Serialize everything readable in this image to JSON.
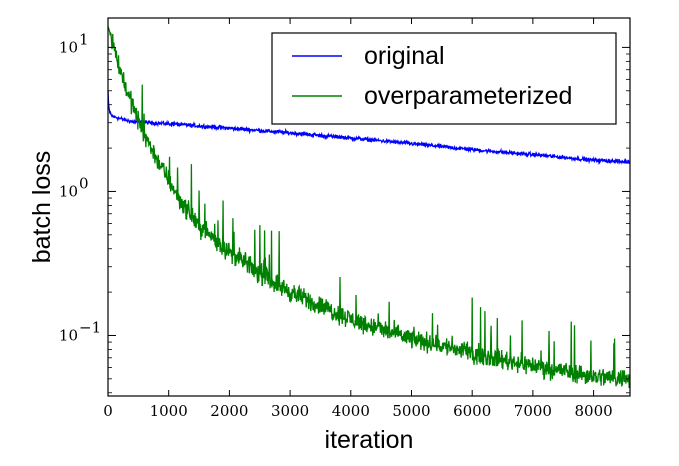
{
  "chart_data": {
    "type": "line",
    "xlabel": "iteration",
    "ylabel": "batch loss",
    "y_scale": "log",
    "xlim": [
      0,
      8600
    ],
    "ylim": [
      0.038,
      16
    ],
    "x_ticks": [
      0,
      1000,
      2000,
      3000,
      4000,
      5000,
      6000,
      7000,
      8000
    ],
    "y_ticks": [
      {
        "value": 10,
        "base": "10",
        "exp": "1"
      },
      {
        "value": 1,
        "base": "10",
        "exp": "0"
      },
      {
        "value": 0.1,
        "base": "10",
        "exp": "−1"
      }
    ],
    "grid": false,
    "legend_position": "top-right",
    "series": [
      {
        "name": "original",
        "color": "#0000ff",
        "noise": 0.02,
        "x": [
          0,
          10,
          30,
          60,
          100,
          200,
          400,
          700,
          1000,
          1500,
          2000,
          3000,
          4000,
          5000,
          6000,
          7000,
          8000,
          8600
        ],
        "y": [
          5.0,
          4.0,
          3.5,
          3.35,
          3.3,
          3.2,
          3.05,
          3.0,
          2.95,
          2.85,
          2.75,
          2.55,
          2.35,
          2.15,
          1.95,
          1.8,
          1.65,
          1.6
        ]
      },
      {
        "name": "overparameterized",
        "color": "#008000",
        "noise": 0.1,
        "x": [
          0,
          50,
          100,
          200,
          300,
          400,
          500,
          600,
          800,
          1000,
          1200,
          1500,
          2000,
          2500,
          3000,
          3500,
          4000,
          4500,
          5000,
          5500,
          6000,
          6500,
          7000,
          7500,
          8000,
          8600
        ],
        "y": [
          14.0,
          12.0,
          10.0,
          7.0,
          5.2,
          4.0,
          3.1,
          2.5,
          1.7,
          1.2,
          0.85,
          0.58,
          0.38,
          0.27,
          0.2,
          0.16,
          0.13,
          0.11,
          0.095,
          0.085,
          0.075,
          0.068,
          0.062,
          0.057,
          0.052,
          0.05
        ]
      }
    ]
  }
}
